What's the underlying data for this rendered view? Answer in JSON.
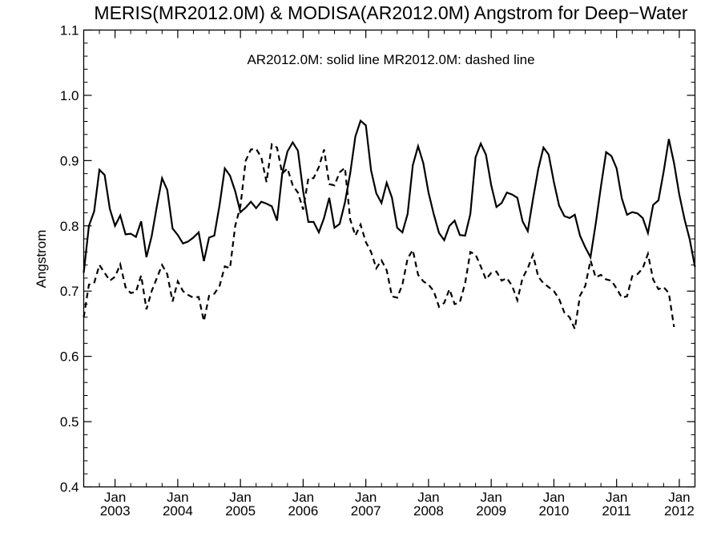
{
  "chart_data": {
    "type": "line",
    "title": "MERIS(MR2012.0M) & MODISA(AR2012.0M)  Angstrom for Deep−Water",
    "annotation": "AR2012.0M: solid line   MR2012.0M: dashed line",
    "xlabel": "",
    "ylabel": "Angstrom",
    "x_start": "2002-07",
    "x_end": "2012-04",
    "ylim": [
      0.4,
      1.1
    ],
    "y_ticks": [
      0.4,
      0.5,
      0.6,
      0.7,
      0.8,
      0.9,
      1.0,
      1.1
    ],
    "y_tick_labels": [
      "0.4",
      "0.5",
      "0.6",
      "0.7",
      "0.8",
      "0.9",
      "1.0",
      "1.1"
    ],
    "x_ticks": [
      {
        "date": "2003-01",
        "month": "Jan",
        "year": "2003"
      },
      {
        "date": "2004-01",
        "month": "Jan",
        "year": "2004"
      },
      {
        "date": "2005-01",
        "month": "Jan",
        "year": "2005"
      },
      {
        "date": "2006-01",
        "month": "Jan",
        "year": "2006"
      },
      {
        "date": "2007-01",
        "month": "Jan",
        "year": "2007"
      },
      {
        "date": "2008-01",
        "month": "Jan",
        "year": "2008"
      },
      {
        "date": "2009-01",
        "month": "Jan",
        "year": "2009"
      },
      {
        "date": "2010-01",
        "month": "Jan",
        "year": "2010"
      },
      {
        "date": "2011-01",
        "month": "Jan",
        "year": "2011"
      },
      {
        "date": "2012-01",
        "month": "Jan",
        "year": "2012"
      }
    ],
    "grid": false,
    "series": [
      {
        "key": "AR2012.0M",
        "style": "solid",
        "color": "#000000",
        "points": [
          [
            "2002-07",
            0.728
          ],
          [
            "2002-08",
            0.8
          ],
          [
            "2002-09",
            0.822
          ],
          [
            "2002-10",
            0.886
          ],
          [
            "2002-11",
            0.878
          ],
          [
            "2002-12",
            0.826
          ],
          [
            "2003-01",
            0.8
          ],
          [
            "2003-02",
            0.816
          ],
          [
            "2003-03",
            0.787
          ],
          [
            "2003-04",
            0.788
          ],
          [
            "2003-05",
            0.783
          ],
          [
            "2003-06",
            0.807
          ],
          [
            "2003-07",
            0.752
          ],
          [
            "2003-08",
            0.784
          ],
          [
            "2003-09",
            0.83
          ],
          [
            "2003-10",
            0.873
          ],
          [
            "2003-11",
            0.855
          ],
          [
            "2003-12",
            0.796
          ],
          [
            "2004-01",
            0.786
          ],
          [
            "2004-02",
            0.773
          ],
          [
            "2004-03",
            0.776
          ],
          [
            "2004-04",
            0.782
          ],
          [
            "2004-05",
            0.79
          ],
          [
            "2004-06",
            0.746
          ],
          [
            "2004-07",
            0.782
          ],
          [
            "2004-08",
            0.785
          ],
          [
            "2004-09",
            0.832
          ],
          [
            "2004-10",
            0.888
          ],
          [
            "2004-11",
            0.877
          ],
          [
            "2004-12",
            0.853
          ],
          [
            "2005-01",
            0.821
          ],
          [
            "2005-02",
            0.828
          ],
          [
            "2005-03",
            0.837
          ],
          [
            "2005-04",
            0.827
          ],
          [
            "2005-05",
            0.837
          ],
          [
            "2005-06",
            0.834
          ],
          [
            "2005-07",
            0.83
          ],
          [
            "2005-08",
            0.808
          ],
          [
            "2005-09",
            0.88
          ],
          [
            "2005-10",
            0.914
          ],
          [
            "2005-11",
            0.928
          ],
          [
            "2005-12",
            0.915
          ],
          [
            "2006-01",
            0.853
          ],
          [
            "2006-02",
            0.806
          ],
          [
            "2006-03",
            0.806
          ],
          [
            "2006-04",
            0.79
          ],
          [
            "2006-05",
            0.812
          ],
          [
            "2006-06",
            0.843
          ],
          [
            "2006-07",
            0.797
          ],
          [
            "2006-08",
            0.803
          ],
          [
            "2006-09",
            0.836
          ],
          [
            "2006-10",
            0.88
          ],
          [
            "2006-11",
            0.937
          ],
          [
            "2006-12",
            0.961
          ],
          [
            "2007-01",
            0.954
          ],
          [
            "2007-02",
            0.885
          ],
          [
            "2007-03",
            0.85
          ],
          [
            "2007-04",
            0.835
          ],
          [
            "2007-05",
            0.866
          ],
          [
            "2007-06",
            0.843
          ],
          [
            "2007-07",
            0.797
          ],
          [
            "2007-08",
            0.79
          ],
          [
            "2007-09",
            0.818
          ],
          [
            "2007-10",
            0.893
          ],
          [
            "2007-11",
            0.922
          ],
          [
            "2007-12",
            0.896
          ],
          [
            "2008-01",
            0.851
          ],
          [
            "2008-02",
            0.818
          ],
          [
            "2008-03",
            0.789
          ],
          [
            "2008-04",
            0.778
          ],
          [
            "2008-05",
            0.8
          ],
          [
            "2008-06",
            0.808
          ],
          [
            "2008-07",
            0.786
          ],
          [
            "2008-08",
            0.785
          ],
          [
            "2008-09",
            0.818
          ],
          [
            "2008-10",
            0.905
          ],
          [
            "2008-11",
            0.926
          ],
          [
            "2008-12",
            0.909
          ],
          [
            "2009-01",
            0.862
          ],
          [
            "2009-02",
            0.829
          ],
          [
            "2009-03",
            0.835
          ],
          [
            "2009-04",
            0.851
          ],
          [
            "2009-05",
            0.848
          ],
          [
            "2009-06",
            0.843
          ],
          [
            "2009-07",
            0.807
          ],
          [
            "2009-08",
            0.792
          ],
          [
            "2009-09",
            0.841
          ],
          [
            "2009-10",
            0.887
          ],
          [
            "2009-11",
            0.92
          ],
          [
            "2009-12",
            0.909
          ],
          [
            "2010-01",
            0.867
          ],
          [
            "2010-02",
            0.831
          ],
          [
            "2010-03",
            0.815
          ],
          [
            "2010-04",
            0.812
          ],
          [
            "2010-05",
            0.817
          ],
          [
            "2010-06",
            0.785
          ],
          [
            "2010-07",
            0.767
          ],
          [
            "2010-08",
            0.752
          ],
          [
            "2010-09",
            0.803
          ],
          [
            "2010-10",
            0.86
          ],
          [
            "2010-11",
            0.913
          ],
          [
            "2010-12",
            0.907
          ],
          [
            "2011-01",
            0.888
          ],
          [
            "2011-02",
            0.842
          ],
          [
            "2011-03",
            0.817
          ],
          [
            "2011-04",
            0.821
          ],
          [
            "2011-05",
            0.819
          ],
          [
            "2011-06",
            0.812
          ],
          [
            "2011-07",
            0.789
          ],
          [
            "2011-08",
            0.832
          ],
          [
            "2011-09",
            0.839
          ],
          [
            "2011-10",
            0.883
          ],
          [
            "2011-11",
            0.933
          ],
          [
            "2011-12",
            0.896
          ],
          [
            "2012-01",
            0.848
          ],
          [
            "2012-02",
            0.81
          ],
          [
            "2012-03",
            0.779
          ],
          [
            "2012-04",
            0.737
          ]
        ]
      },
      {
        "key": "MR2012.0M",
        "style": "dashed",
        "color": "#000000",
        "points": [
          [
            "2002-07",
            0.66
          ],
          [
            "2002-08",
            0.71
          ],
          [
            "2002-09",
            0.712
          ],
          [
            "2002-10",
            0.74
          ],
          [
            "2002-11",
            0.728
          ],
          [
            "2002-12",
            0.716
          ],
          [
            "2003-01",
            0.722
          ],
          [
            "2003-02",
            0.741
          ],
          [
            "2003-03",
            0.706
          ],
          [
            "2003-04",
            0.697
          ],
          [
            "2003-05",
            0.699
          ],
          [
            "2003-06",
            0.724
          ],
          [
            "2003-07",
            0.672
          ],
          [
            "2003-08",
            0.7
          ],
          [
            "2003-09",
            0.72
          ],
          [
            "2003-10",
            0.74
          ],
          [
            "2003-11",
            0.726
          ],
          [
            "2003-12",
            0.684
          ],
          [
            "2004-01",
            0.715
          ],
          [
            "2004-02",
            0.7
          ],
          [
            "2004-03",
            0.694
          ],
          [
            "2004-04",
            0.69
          ],
          [
            "2004-05",
            0.691
          ],
          [
            "2004-06",
            0.654
          ],
          [
            "2004-07",
            0.693
          ],
          [
            "2004-08",
            0.696
          ],
          [
            "2004-09",
            0.708
          ],
          [
            "2004-10",
            0.738
          ],
          [
            "2004-11",
            0.735
          ],
          [
            "2004-12",
            0.8
          ],
          [
            "2005-01",
            0.83
          ],
          [
            "2005-02",
            0.9
          ],
          [
            "2005-03",
            0.917
          ],
          [
            "2005-04",
            0.918
          ],
          [
            "2005-05",
            0.905
          ],
          [
            "2005-06",
            0.867
          ],
          [
            "2005-07",
            0.925
          ],
          [
            "2005-08",
            0.92
          ],
          [
            "2005-09",
            0.88
          ],
          [
            "2005-10",
            0.888
          ],
          [
            "2005-11",
            0.862
          ],
          [
            "2005-12",
            0.851
          ],
          [
            "2006-01",
            0.825
          ],
          [
            "2006-02",
            0.873
          ],
          [
            "2006-03",
            0.873
          ],
          [
            "2006-04",
            0.89
          ],
          [
            "2006-05",
            0.917
          ],
          [
            "2006-06",
            0.864
          ],
          [
            "2006-07",
            0.862
          ],
          [
            "2006-08",
            0.882
          ],
          [
            "2006-09",
            0.889
          ],
          [
            "2006-10",
            0.81
          ],
          [
            "2006-11",
            0.785
          ],
          [
            "2006-12",
            0.802
          ],
          [
            "2007-01",
            0.775
          ],
          [
            "2007-02",
            0.76
          ],
          [
            "2007-03",
            0.735
          ],
          [
            "2007-04",
            0.747
          ],
          [
            "2007-05",
            0.732
          ],
          [
            "2007-06",
            0.692
          ],
          [
            "2007-07",
            0.69
          ],
          [
            "2007-08",
            0.71
          ],
          [
            "2007-09",
            0.75
          ],
          [
            "2007-10",
            0.763
          ],
          [
            "2007-11",
            0.725
          ],
          [
            "2007-12",
            0.715
          ],
          [
            "2008-01",
            0.71
          ],
          [
            "2008-02",
            0.7
          ],
          [
            "2008-03",
            0.676
          ],
          [
            "2008-04",
            0.682
          ],
          [
            "2008-05",
            0.703
          ],
          [
            "2008-06",
            0.68
          ],
          [
            "2008-07",
            0.683
          ],
          [
            "2008-08",
            0.712
          ],
          [
            "2008-09",
            0.76
          ],
          [
            "2008-10",
            0.756
          ],
          [
            "2008-11",
            0.738
          ],
          [
            "2008-12",
            0.718
          ],
          [
            "2009-01",
            0.728
          ],
          [
            "2009-02",
            0.73
          ],
          [
            "2009-03",
            0.716
          ],
          [
            "2009-04",
            0.72
          ],
          [
            "2009-05",
            0.708
          ],
          [
            "2009-06",
            0.686
          ],
          [
            "2009-07",
            0.72
          ],
          [
            "2009-08",
            0.735
          ],
          [
            "2009-09",
            0.756
          ],
          [
            "2009-10",
            0.722
          ],
          [
            "2009-11",
            0.712
          ],
          [
            "2009-12",
            0.706
          ],
          [
            "2010-01",
            0.7
          ],
          [
            "2010-02",
            0.688
          ],
          [
            "2010-03",
            0.667
          ],
          [
            "2010-04",
            0.66
          ],
          [
            "2010-05",
            0.642
          ],
          [
            "2010-06",
            0.693
          ],
          [
            "2010-07",
            0.708
          ],
          [
            "2010-08",
            0.747
          ],
          [
            "2010-09",
            0.721
          ],
          [
            "2010-10",
            0.725
          ],
          [
            "2010-11",
            0.718
          ],
          [
            "2010-12",
            0.716
          ],
          [
            "2011-01",
            0.704
          ],
          [
            "2011-02",
            0.69
          ],
          [
            "2011-03",
            0.692
          ],
          [
            "2011-04",
            0.723
          ],
          [
            "2011-05",
            0.726
          ],
          [
            "2011-06",
            0.735
          ],
          [
            "2011-07",
            0.757
          ],
          [
            "2011-08",
            0.718
          ],
          [
            "2011-09",
            0.703
          ],
          [
            "2011-10",
            0.706
          ],
          [
            "2011-11",
            0.697
          ],
          [
            "2011-12",
            0.645
          ]
        ]
      }
    ]
  }
}
